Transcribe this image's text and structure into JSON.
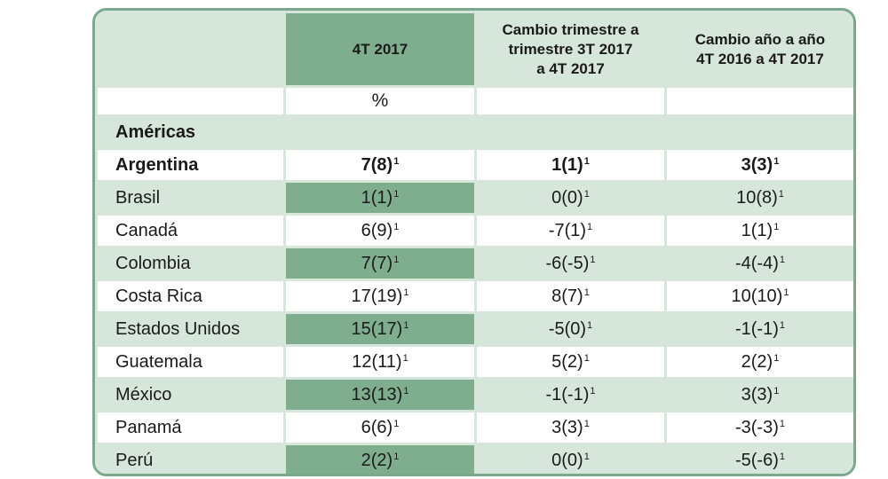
{
  "header": {
    "col0": "",
    "col1": "4T 2017",
    "col2_line1": "Cambio trimestre a",
    "col2_line2": "trimestre 3T 2017",
    "col2_line3": "a 4T 2017",
    "col3_line1": "Cambio año a año",
    "col3_line2": "4T 2016 a 4T 2017"
  },
  "unit_row": {
    "col1": "%"
  },
  "section": {
    "label": "Américas"
  },
  "footnote_mark": "1",
  "rows": [
    {
      "name": "Argentina",
      "v1": "7(8)",
      "v2": "1(1)",
      "v3": "3(3)"
    },
    {
      "name": "Brasil",
      "v1": "1(1)",
      "v2": "0(0)",
      "v3": "10(8)"
    },
    {
      "name": "Canadá",
      "v1": "6(9)",
      "v2": "-7(1)",
      "v3": "1(1)"
    },
    {
      "name": "Colombia",
      "v1": "7(7)",
      "v2": "-6(-5)",
      "v3": "-4(-4)"
    },
    {
      "name": "Costa Rica",
      "v1": "17(19)",
      "v2": "8(7)",
      "v3": "10(10)"
    },
    {
      "name": "Estados Unidos",
      "v1": "15(17)",
      "v2": "-5(0)",
      "v3": "-1(-1)"
    },
    {
      "name": "Guatemala",
      "v1": "12(11)",
      "v2": "5(2)",
      "v3": "2(2)"
    },
    {
      "name": "México",
      "v1": "13(13)",
      "v2": "-1(-1)",
      "v3": "3(3)"
    },
    {
      "name": "Panamá",
      "v1": "6(6)",
      "v2": "3(3)",
      "v3": "-3(-3)"
    },
    {
      "name": "Perú",
      "v1": "2(2)",
      "v2": "0(0)",
      "v3": "-5(-6)"
    }
  ],
  "colors": {
    "light_green": "#d6e6da",
    "dark_green": "#7fae8f",
    "border_green": "#7aa88a"
  }
}
